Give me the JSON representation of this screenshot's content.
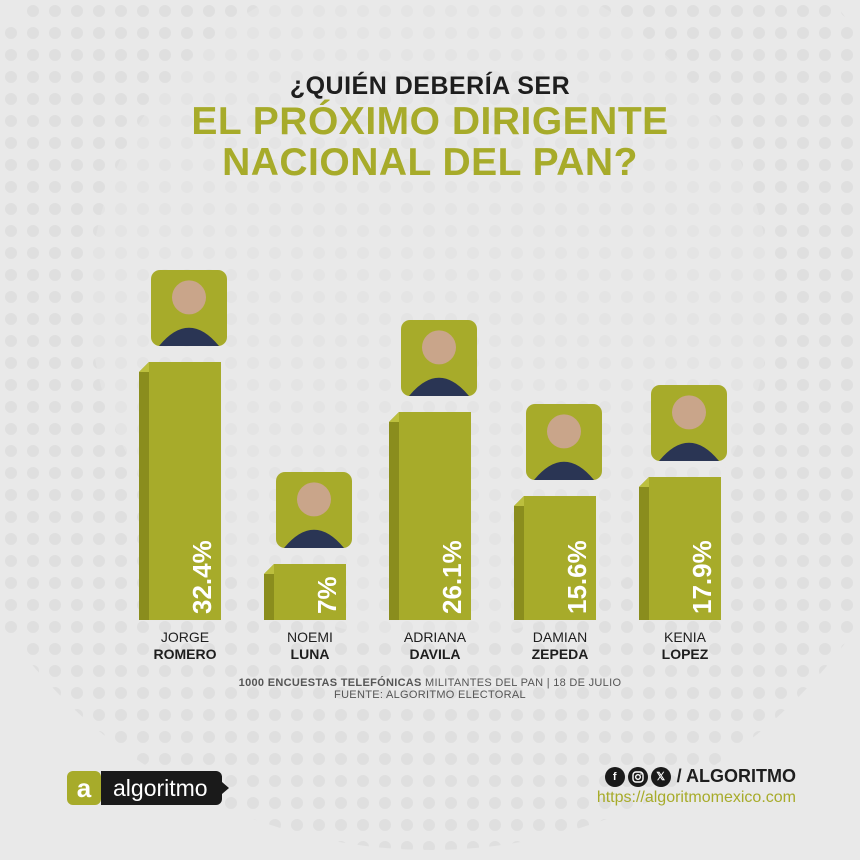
{
  "header": {
    "line1": "¿QUIÉN DEBERÍA SER",
    "line2": "EL PRÓXIMO DIRIGENTE",
    "line3": "NACIONAL DEL PAN?"
  },
  "chart_data": {
    "type": "bar",
    "categories": [
      "JORGE ROMERO",
      "NOEMI LUNA",
      "ADRIANA DAVILA",
      "DAMIAN ZEPEDA",
      "KENIA LOPEZ"
    ],
    "first_names": [
      "JORGE",
      "NOEMI",
      "ADRIANA",
      "DAMIAN",
      "KENIA"
    ],
    "last_names": [
      "ROMERO",
      "LUNA",
      "DAVILA",
      "ZEPEDA",
      "LOPEZ"
    ],
    "values": [
      32.4,
      7,
      26.1,
      15.6,
      17.9
    ],
    "value_labels": [
      "32.4%",
      "7%",
      "26.1%",
      "15.6%",
      "17.9%"
    ],
    "unit": "%",
    "ylim": [
      0,
      32.4
    ],
    "grid": false,
    "legend": "none",
    "bar_color": "#a7ab2a"
  },
  "source": {
    "bold": "1000 ENCUESTAS TELEFÓNICAS",
    "rest": " MILITANTES DEL PAN | 18 DE JULIO",
    "line2": "FUENTE: ALGORITMO  ELECTORAL"
  },
  "brand": {
    "logo_mark": "a",
    "logo_text": "algoritmo",
    "social_icons": [
      "facebook-icon",
      "instagram-icon",
      "x-icon"
    ],
    "handle": "/ ALGORITMO",
    "url": "https://algoritmomexico.com"
  },
  "colors": {
    "accent": "#a7ab2a",
    "background": "#e9e9e9",
    "text_dark": "#1e1e1e"
  }
}
